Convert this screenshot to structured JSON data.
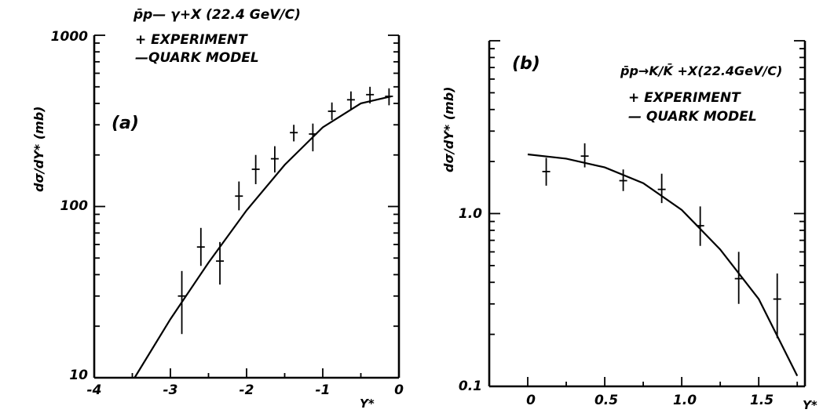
{
  "chart_data": [
    {
      "panel": "(a)",
      "type": "scatter",
      "title": "p̄p— γ+X (22.4 GeV/C)",
      "xlabel": "Y*",
      "ylabel": "dσ/dY* (mb)",
      "yscale": "log",
      "xlim": [
        -4,
        0
      ],
      "ylim": [
        10,
        1000
      ],
      "xticks": [
        "-4",
        "-3",
        "-2",
        "-1",
        "0"
      ],
      "yticks": [
        "10",
        "100",
        "1000"
      ],
      "legend": [
        "+ EXPERIMENT",
        "—QUARK MODEL"
      ],
      "series": [
        {
          "name": "EXPERIMENT",
          "type": "errorbar",
          "x": [
            -2.85,
            -2.6,
            -2.35,
            -2.1,
            -1.88,
            -1.63,
            -1.38,
            -1.13,
            -0.88,
            -0.63,
            -0.38,
            -0.13
          ],
          "y": [
            30,
            58,
            48,
            115,
            165,
            190,
            270,
            265,
            360,
            420,
            450,
            440
          ],
          "ylow": [
            18,
            45,
            35,
            95,
            135,
            158,
            240,
            210,
            320,
            370,
            400,
            390
          ],
          "yhigh": [
            42,
            75,
            62,
            140,
            200,
            225,
            300,
            305,
            405,
            470,
            500,
            490
          ]
        },
        {
          "name": "QUARK MODEL",
          "type": "line",
          "x": [
            -3.47,
            -3.0,
            -2.5,
            -2.0,
            -1.5,
            -1.0,
            -0.5,
            -0.1
          ],
          "y": [
            10,
            22,
            47,
            95,
            175,
            290,
            400,
            440
          ]
        }
      ],
      "grid": false
    },
    {
      "panel": "(b)",
      "type": "scatter",
      "title": "p̄p→K/K̄ +X(22.4GeV/C)",
      "xlabel": "Y*",
      "ylabel": "dσ/dY* (mb)",
      "yscale": "log",
      "xlim": [
        -0.25,
        1.8
      ],
      "ylim": [
        0.1,
        10
      ],
      "xticks": [
        "0",
        "0.5",
        "1.0",
        "1.5"
      ],
      "yticks": [
        "0.1",
        "1.0"
      ],
      "legend": [
        "+ EXPERIMENT",
        "— QUARK MODEL"
      ],
      "series": [
        {
          "name": "EXPERIMENT",
          "type": "errorbar",
          "x": [
            0.12,
            0.37,
            0.62,
            0.87,
            1.12,
            1.37,
            1.62
          ],
          "y": [
            1.75,
            2.15,
            1.55,
            1.38,
            0.85,
            0.42,
            0.32
          ],
          "ylow": [
            1.45,
            1.85,
            1.35,
            1.15,
            0.65,
            0.3,
            0.19
          ],
          "yhigh": [
            2.1,
            2.55,
            1.8,
            1.7,
            1.1,
            0.6,
            0.45
          ]
        },
        {
          "name": "QUARK MODEL",
          "type": "line",
          "x": [
            0,
            0.25,
            0.5,
            0.75,
            1.0,
            1.25,
            1.5,
            1.75
          ],
          "y": [
            2.2,
            2.08,
            1.85,
            1.5,
            1.05,
            0.62,
            0.32,
            0.115
          ]
        }
      ],
      "grid": false
    }
  ]
}
